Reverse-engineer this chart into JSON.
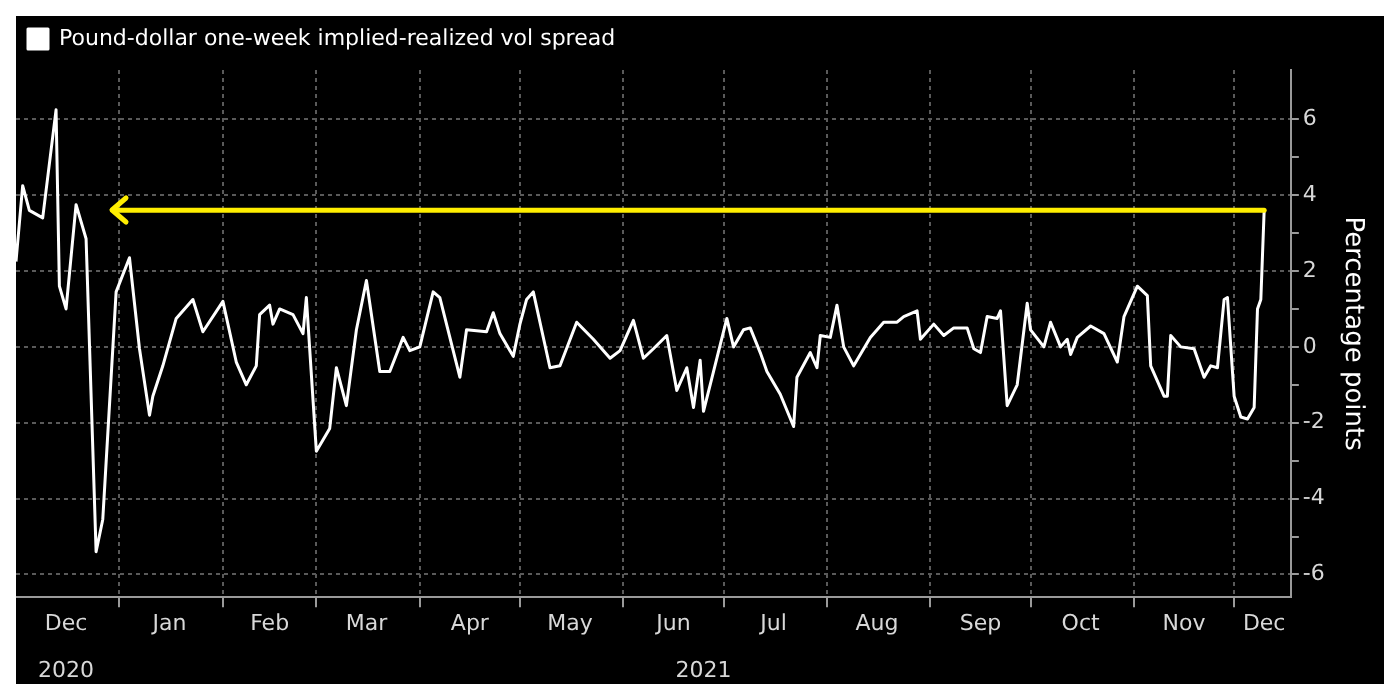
{
  "chart_data": {
    "type": "line",
    "ylabel": "Percentage points",
    "ref_lines": [
      {
        "axis": "y",
        "value": 3.6,
        "color": "#ffee00"
      }
    ],
    "legend": "top left",
    "grid": true,
    "marker": "none",
    "line_style": "solid",
    "xlim": [
      "2020-12-01",
      "2021-12-18"
    ],
    "xticks": [
      {
        "value": "2020-12-16",
        "label": "Dec"
      },
      {
        "value": "2021-01-01",
        "label": null
      },
      {
        "value": "2021-01-16",
        "label": "Jan"
      },
      {
        "value": "2021-02-01",
        "label": null
      },
      {
        "value": "2021-02-15",
        "label": "Feb"
      },
      {
        "value": "2021-03-01",
        "label": null
      },
      {
        "value": "2021-03-16",
        "label": "Mar"
      },
      {
        "value": "2021-04-01",
        "label": null
      },
      {
        "value": "2021-04-16",
        "label": "Apr"
      },
      {
        "value": "2021-05-01",
        "label": null
      },
      {
        "value": "2021-05-16",
        "label": "May"
      },
      {
        "value": "2021-06-01",
        "label": null
      },
      {
        "value": "2021-06-16",
        "label": "Jun"
      },
      {
        "value": "2021-07-01",
        "label": null
      },
      {
        "value": "2021-07-16",
        "label": "Jul"
      },
      {
        "value": "2021-08-01",
        "label": null
      },
      {
        "value": "2021-08-16",
        "label": "Aug"
      },
      {
        "value": "2021-09-01",
        "label": null
      },
      {
        "value": "2021-09-16",
        "label": "Sep"
      },
      {
        "value": "2021-10-01",
        "label": null
      },
      {
        "value": "2021-10-16",
        "label": "Oct"
      },
      {
        "value": "2021-11-01",
        "label": null
      },
      {
        "value": "2021-11-16",
        "label": "Nov"
      },
      {
        "value": "2021-12-01",
        "label": null
      },
      {
        "value": "2021-12-10",
        "label": "Dec"
      }
    ],
    "x2lim": [
      "2020-12-01",
      "2021-12-18"
    ],
    "x2ticks": [
      {
        "value": "2020-12-16",
        "label": "2020"
      },
      {
        "value": "2021-06-25",
        "label": "2021"
      }
    ],
    "ylim": [
      -6.6,
      7.3
    ],
    "yticks": [
      -6,
      {
        "value": -5,
        "label": null
      },
      -4,
      {
        "value": -3,
        "label": null
      },
      -2,
      {
        "value": -1,
        "label": null
      },
      0,
      {
        "value": 1,
        "label": null
      },
      2,
      {
        "value": 3,
        "label": null
      },
      4,
      {
        "value": 5,
        "label": null
      },
      6
    ],
    "series": [
      {
        "name": "Pound-dollar one-week implied-realized vol spread",
        "color": "#ffffff",
        "x": [
          "2020-12-01",
          "2020-12-03",
          "2020-12-05",
          "2020-12-09",
          "2020-12-13",
          "2020-12-14",
          "2020-12-16",
          "2020-12-19",
          "2020-12-22",
          "2020-12-25",
          "2020-12-27",
          "2020-12-31",
          "2021-01-04",
          "2021-01-07",
          "2021-01-10",
          "2021-01-11",
          "2021-01-14",
          "2021-01-18",
          "2021-01-23",
          "2021-01-26",
          "2021-02-01",
          "2021-02-05",
          "2021-02-08",
          "2021-02-11",
          "2021-02-12",
          "2021-02-15",
          "2021-02-16",
          "2021-02-18",
          "2021-02-22",
          "2021-02-25",
          "2021-02-26",
          "2021-03-01",
          "2021-03-05",
          "2021-03-07",
          "2021-03-10",
          "2021-03-13",
          "2021-03-16",
          "2021-03-20",
          "2021-03-23",
          "2021-03-27",
          "2021-03-29",
          "2021-04-01",
          "2021-04-05",
          "2021-04-07",
          "2021-04-13",
          "2021-04-15",
          "2021-04-21",
          "2021-04-23",
          "2021-04-25",
          "2021-04-29",
          "2021-05-01",
          "2021-05-03",
          "2021-05-05",
          "2021-05-10",
          "2021-05-13",
          "2021-05-18",
          "2021-05-23",
          "2021-05-28",
          "2021-05-31",
          "2021-06-04",
          "2021-06-07",
          "2021-06-10",
          "2021-06-14",
          "2021-06-17",
          "2021-06-20",
          "2021-06-22",
          "2021-06-24",
          "2021-06-25",
          "2021-06-28",
          "2021-07-02",
          "2021-07-04",
          "2021-07-07",
          "2021-07-09",
          "2021-07-12",
          "2021-07-14",
          "2021-07-18",
          "2021-07-22",
          "2021-07-23",
          "2021-07-27",
          "2021-07-29",
          "2021-07-30",
          "2021-08-02",
          "2021-08-04",
          "2021-08-06",
          "2021-08-09",
          "2021-08-14",
          "2021-08-18",
          "2021-08-22",
          "2021-08-24",
          "2021-08-28",
          "2021-08-29",
          "2021-09-02",
          "2021-09-05",
          "2021-09-08",
          "2021-09-12",
          "2021-09-14",
          "2021-09-16",
          "2021-09-18",
          "2021-09-21",
          "2021-09-22",
          "2021-09-24",
          "2021-09-27",
          "2021-09-30",
          "2021-10-01",
          "2021-10-05",
          "2021-10-07",
          "2021-10-10",
          "2021-10-12",
          "2021-10-13",
          "2021-10-15",
          "2021-10-19",
          "2021-10-23",
          "2021-10-27",
          "2021-10-29",
          "2021-11-02",
          "2021-11-05",
          "2021-11-06",
          "2021-11-10",
          "2021-11-11",
          "2021-11-12",
          "2021-11-15",
          "2021-11-19",
          "2021-11-22",
          "2021-11-24",
          "2021-11-26",
          "2021-11-28",
          "2021-11-29",
          "2021-12-01",
          "2021-12-03",
          "2021-12-05",
          "2021-12-07",
          "2021-12-08",
          "2021-12-09",
          "2021-12-10"
        ],
        "values": [
          2.25,
          4.25,
          3.6,
          3.4,
          6.25,
          1.6,
          1.0,
          3.75,
          2.85,
          -5.4,
          -4.55,
          1.45,
          2.35,
          -0.05,
          -1.8,
          -1.3,
          -0.5,
          0.75,
          1.25,
          0.4,
          1.2,
          -0.4,
          -1.0,
          -0.5,
          0.85,
          1.1,
          0.6,
          1.0,
          0.85,
          0.35,
          1.3,
          -2.75,
          -2.15,
          -0.55,
          -1.55,
          0.45,
          1.75,
          -0.65,
          -0.65,
          0.25,
          -0.1,
          0,
          1.45,
          1.3,
          -0.8,
          0.45,
          0.4,
          0.9,
          0.35,
          -0.25,
          0.6,
          1.25,
          1.45,
          -0.55,
          -0.5,
          0.65,
          0.2,
          -0.3,
          -0.1,
          0.7,
          -0.3,
          -0.05,
          0.3,
          -1.15,
          -0.55,
          -1.6,
          -0.35,
          -1.7,
          -0.65,
          0.75,
          0,
          0.45,
          0.5,
          -0.15,
          -0.65,
          -1.25,
          -2.1,
          -0.8,
          -0.15,
          -0.55,
          0.3,
          0.25,
          1.1,
          0,
          -0.5,
          0.25,
          0.65,
          0.65,
          0.8,
          0.95,
          0.2,
          0.6,
          0.3,
          0.5,
          0.5,
          -0.05,
          -0.15,
          0.8,
          0.75,
          0.95,
          -1.55,
          -1.0,
          1.15,
          0.45,
          0,
          0.65,
          0,
          0.2,
          -0.2,
          0.25,
          0.55,
          0.35,
          -0.4,
          0.8,
          1.6,
          1.35,
          -0.5,
          -1.3,
          -1.3,
          0.3,
          0,
          -0.05,
          -0.8,
          -0.5,
          -0.55,
          1.25,
          1.3,
          -1.3,
          -1.85,
          -1.9,
          -1.6,
          1.0,
          1.25,
          3.6
        ]
      }
    ]
  }
}
